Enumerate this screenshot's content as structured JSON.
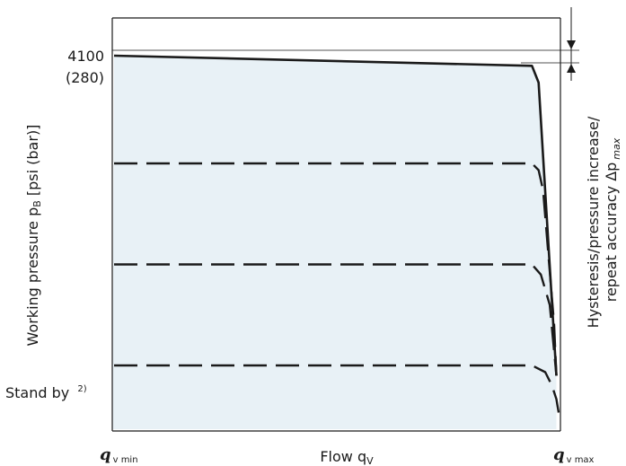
{
  "colors": {
    "fill": "#e8f1f6",
    "axis": "#1a1a1a",
    "curve": "#1a1a1a"
  },
  "chart_data": {
    "type": "line",
    "title": "",
    "xlabel": "Flow q",
    "xlabel_sub": "V",
    "ylabel": "Working pressure p",
    "ylabel_sub": "B",
    "ylabel_unit": " [psi (bar)]",
    "x_ticks": [
      {
        "main": "q",
        "sub": "v min"
      },
      {
        "main": "q",
        "sub": "v max"
      }
    ],
    "y_ticks": [
      "4100",
      "(280)",
      "Stand by",
      "2)"
    ],
    "ylim": [
      0,
      100
    ],
    "xlim": [
      0,
      100
    ],
    "hysteresis_label_line1": "Hysteresis/pressure increase/",
    "hysteresis_label_line2": "repeat accuracy Δp",
    "hysteresis_label_sub": "max",
    "series": [
      {
        "style": "solid",
        "x": [
          0,
          94,
          95.5,
          96.5,
          99.5
        ],
        "y": [
          100,
          97,
          92,
          70,
          5
        ]
      },
      {
        "style": "dashed",
        "x": [
          0,
          94,
          95.5,
          96.5,
          99,
          99.5
        ],
        "y": [
          68,
          68,
          66,
          60,
          20,
          5
        ]
      },
      {
        "style": "dashed",
        "x": [
          0,
          94,
          96,
          98,
          99.5
        ],
        "y": [
          38,
          38,
          35,
          26,
          5
        ]
      },
      {
        "style": "dashed",
        "x": [
          0,
          94,
          97,
          98.5,
          99.5,
          100
        ],
        "y": [
          8,
          8,
          6,
          2,
          -2,
          -6
        ]
      }
    ]
  }
}
